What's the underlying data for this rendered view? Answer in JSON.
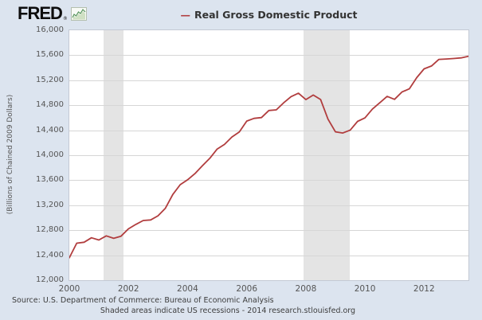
{
  "logo": {
    "text": "FRED",
    "registered": "®",
    "icon": "green-sparkline-icon"
  },
  "legend": {
    "marker": "—",
    "label": "Real Gross Domestic Product"
  },
  "y_axis": {
    "title": "(Billions of Chained 2009 Dollars)"
  },
  "footer": {
    "source_line": "Source: U.S. Department of Commerce: Bureau of Economic Analysis",
    "note_line": "Shaded areas indicate US recessions - 2014 research.stlouisfed.org"
  },
  "colors": {
    "background": "#dce4ef",
    "plot_background": "#ffffff",
    "grid": "#d6d6d6",
    "recession_band": "#e4e4e4",
    "line": "#b13d3e",
    "border": "#c3c9d4",
    "text": "#3d3d3d"
  },
  "chart_data": {
    "type": "line",
    "title": "Real Gross Domestic Product",
    "ylabel": "(Billions of Chained 2009 Dollars)",
    "unit": "Billions of Chained 2009 Dollars",
    "frequency": "quarterly",
    "start_year": 2000,
    "x_range": [
      2000,
      2013.5
    ],
    "y_range": [
      12000,
      16000
    ],
    "y_tick_step": 400,
    "x_tick_step": 2,
    "y_tick_labels": [
      "12,000",
      "12,400",
      "12,800",
      "13,200",
      "13,600",
      "14,000",
      "14,400",
      "14,800",
      "15,200",
      "15,600",
      "16,000"
    ],
    "x_tick_labels": [
      "2000",
      "2002",
      "2004",
      "2006",
      "2008",
      "2010",
      "2012"
    ],
    "grid": "horizontal-only",
    "legend_position": "top-center",
    "values": [
      12359,
      12592,
      12608,
      12679,
      12643,
      12710,
      12670,
      12705,
      12822,
      12893,
      12956,
      12964,
      13031,
      13152,
      13372,
      13529,
      13606,
      13706,
      13831,
      13950,
      14099,
      14173,
      14292,
      14373,
      14546,
      14590,
      14603,
      14716,
      14726,
      14839,
      14938,
      14992,
      14890,
      14963,
      14892,
      14577,
      14375,
      14356,
      14403,
      14542,
      14598,
      14738,
      14839,
      14942,
      14894,
      15011,
      15062,
      15242,
      15382,
      15428,
      15534,
      15540,
      15548,
      15558,
      15583
    ],
    "recessions": [
      {
        "start": 2001.17,
        "end": 2001.83
      },
      {
        "start": 2007.92,
        "end": 2009.5
      }
    ]
  }
}
